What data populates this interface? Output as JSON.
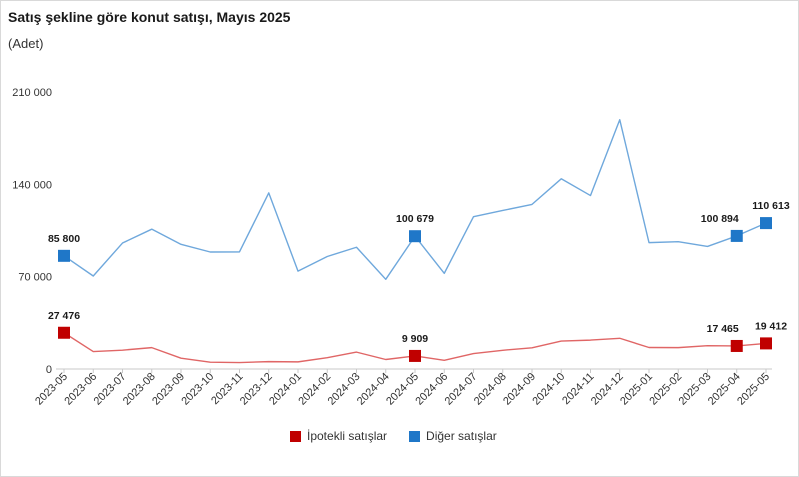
{
  "chart_data": {
    "type": "line",
    "title": "Satış şekline göre konut satışı, Mayıs 2025",
    "subtitle": "(Adet)",
    "xlabel": "",
    "ylabel": "",
    "ylim": [
      0,
      210000
    ],
    "yticks": [
      0,
      70000,
      140000,
      210000
    ],
    "ytick_labels": [
      "0",
      "70 000",
      "140 000",
      "210 000"
    ],
    "categories": [
      "2023-05",
      "2023-06",
      "2023-07",
      "2023-08",
      "2023-09",
      "2023-10",
      "2023-11",
      "2023-12",
      "2024-01",
      "2024-02",
      "2024-03",
      "2024-04",
      "2024-05",
      "2024-06",
      "2024-07",
      "2024-08",
      "2024-09",
      "2024-10",
      "2024-11",
      "2024-12",
      "2025-01",
      "2025-02",
      "2025-03",
      "2025-04",
      "2025-05"
    ],
    "legend_position": "bottom",
    "grid": false,
    "series": [
      {
        "name": "İpotekli satışlar",
        "color": "#c00000",
        "line_color": "#e06666",
        "values": [
          27476,
          13200,
          14300,
          16200,
          8200,
          5200,
          4900,
          5600,
          5400,
          8600,
          12800,
          7200,
          9909,
          6600,
          11700,
          14200,
          16100,
          21200,
          21900,
          23300,
          16300,
          16200,
          17700,
          17465,
          19412
        ],
        "labels": [
          {
            "index": 0,
            "text": "27 476"
          },
          {
            "index": 12,
            "text": "9 909"
          },
          {
            "index": 23,
            "text": "17 465"
          },
          {
            "index": 24,
            "text": "19 412"
          }
        ]
      },
      {
        "name": "Diğer satışlar",
        "color": "#1f77c8",
        "line_color": "#6fa8dc",
        "values": [
          85800,
          70500,
          95500,
          106000,
          94500,
          88700,
          88800,
          133500,
          74200,
          85300,
          92300,
          68000,
          100679,
          72500,
          115500,
          120200,
          124800,
          144200,
          131500,
          189000,
          95800,
          96500,
          92900,
          100894,
          110613
        ],
        "labels": [
          {
            "index": 0,
            "text": "85 800"
          },
          {
            "index": 12,
            "text": "100 679"
          },
          {
            "index": 23,
            "text": "100 894"
          },
          {
            "index": 24,
            "text": "110 613"
          }
        ]
      }
    ]
  }
}
